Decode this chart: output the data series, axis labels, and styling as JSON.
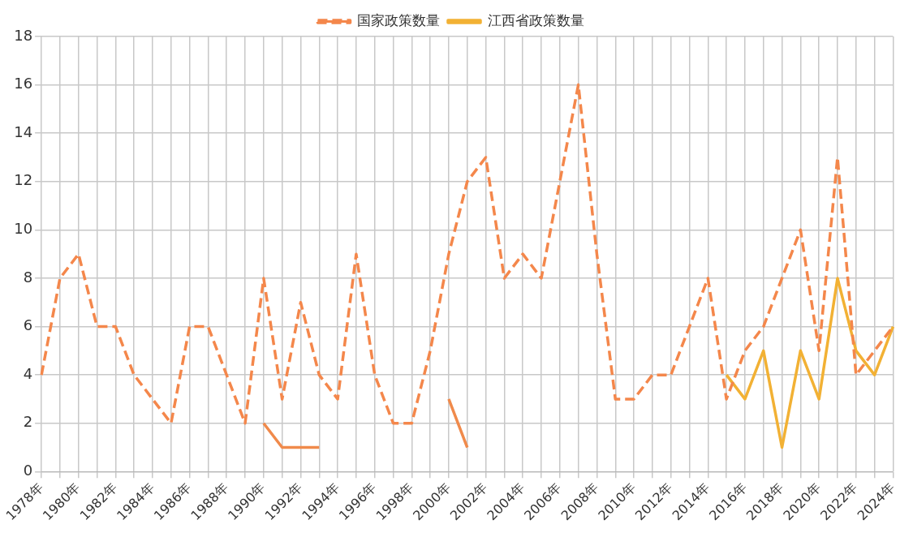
{
  "chart_data": {
    "type": "line",
    "categories": [
      "1978年",
      null,
      "1980年",
      null,
      "1982年",
      null,
      "1984年",
      null,
      "1986年",
      null,
      "1988年",
      null,
      "1990年",
      null,
      "1992年",
      null,
      "1994年",
      null,
      "1996年",
      null,
      "1998年",
      null,
      "2000年",
      null,
      "2002年",
      null,
      "2004年",
      null,
      "2006年",
      null,
      "2008年",
      null,
      "2010年",
      null,
      "2012年",
      null,
      "2014年",
      null,
      "2016年",
      null,
      "2018年",
      null,
      "2020年",
      null,
      "2022年",
      null,
      "2024年"
    ],
    "series": [
      {
        "name": "国家政策数量",
        "color": "#f4874b",
        "line_style": "dashed",
        "values": [
          4,
          8,
          9,
          6,
          6,
          4,
          3,
          2,
          6,
          6,
          4,
          2,
          8,
          3,
          7,
          4,
          3,
          9,
          4,
          2,
          2,
          5,
          9,
          12,
          13,
          8,
          9,
          8,
          12,
          16,
          9,
          3,
          3,
          4,
          4,
          6,
          8,
          3,
          5,
          6,
          8,
          10,
          5,
          13,
          4,
          5,
          6
        ]
      },
      {
        "color": "#f08a4b",
        "line_style": "solid",
        "values": [
          null,
          null,
          null,
          null,
          null,
          null,
          null,
          null,
          null,
          null,
          null,
          null,
          2,
          1,
          1,
          1,
          null,
          null,
          null,
          null,
          null,
          null,
          3,
          1,
          null,
          null,
          null,
          null,
          null,
          null,
          null,
          null,
          null,
          null,
          null,
          null,
          null,
          null,
          null,
          null,
          null,
          null,
          null,
          null,
          null,
          null,
          null
        ]
      },
      {
        "name": "江西省政策数量",
        "color": "#f2b134",
        "line_style": "solid",
        "values": [
          null,
          null,
          null,
          null,
          null,
          null,
          null,
          null,
          null,
          null,
          null,
          null,
          null,
          null,
          null,
          null,
          null,
          null,
          null,
          null,
          null,
          null,
          null,
          null,
          null,
          null,
          null,
          null,
          null,
          null,
          null,
          null,
          null,
          null,
          null,
          null,
          null,
          4,
          3,
          5,
          1,
          5,
          3,
          8,
          5,
          4,
          6
        ]
      }
    ],
    "ylim": [
      0,
      18
    ],
    "yticks": [
      0,
      2,
      4,
      6,
      8,
      10,
      12,
      14,
      16,
      18
    ],
    "grid": true,
    "legend": "top",
    "marker": "none"
  }
}
